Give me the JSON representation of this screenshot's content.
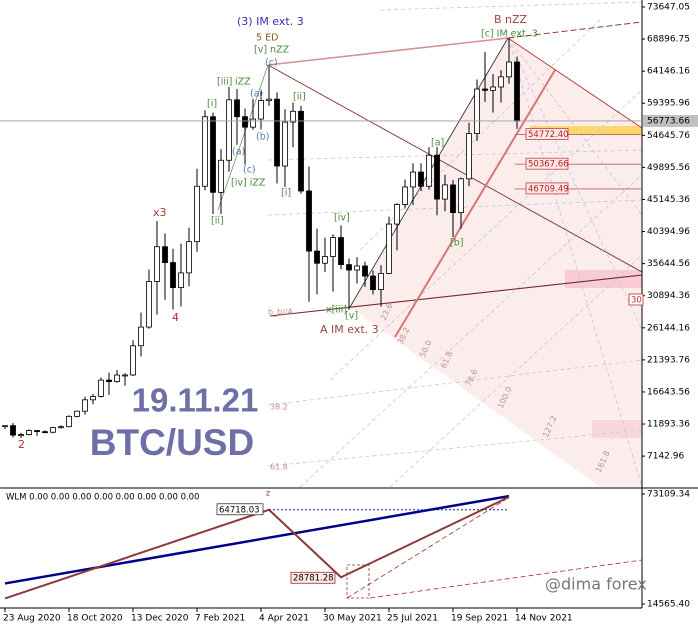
{
  "chart_data": [
    {
      "type": "candlestick",
      "title": "19.11.21",
      "subtitle": "BTC/USD",
      "categories": [
        "23 Aug 2020",
        null,
        null,
        null,
        null,
        null,
        null,
        null,
        "18 Oct 2020",
        null,
        null,
        null,
        null,
        null,
        null,
        null,
        "13 Dec 2020",
        null,
        null,
        null,
        null,
        null,
        null,
        null,
        "7 Feb 2021",
        null,
        null,
        null,
        null,
        null,
        null,
        null,
        "4 Apr 2021",
        null,
        null,
        null,
        null,
        null,
        null,
        null,
        "30 May 2021",
        null,
        null,
        null,
        null,
        null,
        null,
        null,
        "25 Jul 2021",
        null,
        null,
        null,
        null,
        null,
        null,
        null,
        "19 Sep 2021",
        null,
        null,
        null,
        null,
        null,
        null,
        null,
        "14 Nov 2021"
      ],
      "open": [
        11650,
        11650,
        10250,
        10330,
        10930,
        10770,
        10680,
        11370,
        11500,
        13030,
        13800,
        15480,
        15980,
        18400,
        18180,
        19150,
        19160,
        23480,
        26250,
        33000,
        38150,
        35800,
        32100,
        34270,
        38900,
        47100,
        57400,
        46200,
        50950,
        59900,
        57400,
        55850,
        57050,
        59800,
        60000,
        50100,
        56600,
        58200,
        46400,
        37500,
        35700,
        36700,
        39500,
        35500,
        34700,
        35300,
        33800,
        31800,
        34200,
        41500,
        44400,
        47000,
        49200,
        47100,
        51700,
        45200,
        47300,
        43200,
        48200,
        54900,
        61500,
        61300,
        61800,
        63300,
        65500
      ],
      "high": [
        11700,
        12050,
        10600,
        11100,
        10990,
        10950,
        11490,
        11720,
        13200,
        13860,
        15960,
        16340,
        18800,
        19480,
        19920,
        19420,
        24300,
        28400,
        34780,
        41950,
        40100,
        37850,
        38600,
        40950,
        49700,
        58350,
        58000,
        52600,
        61800,
        61500,
        58600,
        60000,
        61200,
        64850,
        61000,
        58500,
        59500,
        59000,
        50000,
        40800,
        39500,
        40000,
        41300,
        36400,
        36600,
        35950,
        34600,
        35400,
        42600,
        44600,
        48100,
        50500,
        50500,
        52900,
        52900,
        48800,
        48000,
        48400,
        56500,
        62900,
        67000,
        63700,
        64300,
        69000,
        66300
      ],
      "low": [
        11150,
        9900,
        9850,
        10200,
        10150,
        10520,
        10530,
        11210,
        11420,
        12900,
        13290,
        14830,
        15800,
        16200,
        18000,
        17570,
        19000,
        21900,
        26000,
        28100,
        30300,
        28850,
        29300,
        32300,
        37400,
        46500,
        43000,
        43000,
        49250,
        53250,
        50300,
        55450,
        55500,
        59000,
        47500,
        47000,
        52900,
        46000,
        30000,
        31100,
        34400,
        31500,
        34800,
        28800,
        32700,
        32200,
        31100,
        29300,
        34100,
        37600,
        43800,
        44300,
        46400,
        46600,
        42800,
        43400,
        39600,
        40800,
        47100,
        53800,
        59600,
        58000,
        59500,
        62300,
        55600
      ],
      "close": [
        11650,
        10250,
        10330,
        10930,
        10770,
        10680,
        11370,
        11500,
        13030,
        13800,
        15480,
        15980,
        18400,
        18180,
        19150,
        19160,
        23480,
        26250,
        33000,
        38150,
        35800,
        32100,
        34270,
        38900,
        47100,
        57400,
        46200,
        50950,
        59900,
        57400,
        55850,
        57050,
        59800,
        60000,
        50100,
        56600,
        58200,
        46400,
        37500,
        35700,
        36700,
        39500,
        35500,
        34700,
        35300,
        33800,
        31800,
        34200,
        41500,
        44400,
        47000,
        49200,
        47100,
        51700,
        45200,
        47300,
        43200,
        48200,
        54900,
        61500,
        61300,
        61800,
        63300,
        65500,
        56773.66
      ],
      "bull_color": "#ffffff",
      "bear_color": "#000000",
      "ylim": [
        2570,
        74680
      ],
      "yticks": [
        73647.05,
        68896.75,
        64146.16,
        59395.96,
        54645.76,
        49895.56,
        45145.36,
        40394.96,
        35644.56,
        30894.36,
        26144.16,
        21393.76,
        16643.56,
        11893.36,
        7142.96
      ],
      "levels": [
        {
          "value": 54772.4,
          "label": "54772.40"
        },
        {
          "value": 50367.66,
          "label": "50367.66"
        },
        {
          "value": 46709.49,
          "label": "46709.49"
        }
      ],
      "annotations": [
        {
          "text": "(3) IM ext. 3",
          "color": "#3333aa"
        },
        {
          "text": "5 ED",
          "color": "#8a5a2a"
        },
        {
          "text": "[v] nZZ",
          "color": "#4a8a3a"
        },
        {
          "text": "(c)",
          "color": "#5577aa"
        },
        {
          "text": "[iii]",
          "color": "#4a8a3a"
        },
        {
          "text": "iZZ",
          "color": "#4a8a3a"
        },
        {
          "text": "(a)",
          "color": "#5577aa"
        },
        {
          "text": "[ii]",
          "color": "#4a8a3a"
        },
        {
          "text": "[i]",
          "color": "#4a8a3a"
        },
        {
          "text": "(b)",
          "color": "#5577aa"
        },
        {
          "text": "(a)",
          "color": "#5577aa"
        },
        {
          "text": "(c)",
          "color": "#5577aa"
        },
        {
          "text": "[iv] iZZ",
          "color": "#4a8a3a"
        },
        {
          "text": "[i]",
          "color": "#4a8a3a"
        },
        {
          "text": "[ii]",
          "color": "#4a8a3a"
        },
        {
          "text": "x3",
          "color": "#b03030"
        },
        {
          "text": "4",
          "color": "#b03030"
        },
        {
          "text": "2",
          "color": "#b03030"
        },
        {
          "text": "[iv]",
          "color": "#4a8a3a"
        },
        {
          "text": "x[iii]",
          "color": "#4a8a3a"
        },
        {
          "text": "[v]",
          "color": "#4a8a3a"
        },
        {
          "text": "A IM ext. 3",
          "color": "#a04040"
        },
        {
          "text": "B nZZ",
          "color": "#a04040"
        },
        {
          "text": "[c] IM ext. 3",
          "color": "#4a8a3a"
        },
        {
          "text": "[a]",
          "color": "#4a8a3a"
        },
        {
          "text": "[b]",
          "color": "#4a8a3a"
        },
        {
          "text": "b_b//A",
          "color": "#c09090"
        },
        {
          "text": "23.6",
          "color": "#c09090"
        },
        {
          "text": "38.2",
          "color": "#c09090"
        },
        {
          "text": "50.0",
          "color": "#c09090"
        },
        {
          "text": "61.8",
          "color": "#c09090"
        },
        {
          "text": "78.6",
          "color": "#c09090"
        },
        {
          "text": "100.0",
          "color": "#c09090"
        },
        {
          "text": "127.2",
          "color": "#c09090"
        },
        {
          "text": "161.8",
          "color": "#c09090"
        },
        {
          "text": "38.2",
          "color": "#c09090"
        },
        {
          "text": "61.8",
          "color": "#c09090"
        },
        {
          "text": "30",
          "color": "#c03030"
        }
      ]
    },
    {
      "type": "line",
      "label": "WLM 0.00 0.00 0.00 0.00 0.00 0.00 0.00 0.00",
      "marker": "z",
      "watermark": "@dima forex",
      "ylim": [
        14565.4,
        73109.34
      ],
      "yticks": [
        {
          "value": 14565.4,
          "label": "14565.40"
        },
        73109.34
      ],
      "series": [
        {
          "color": "#00008b",
          "x": [
            "23 Aug 2020",
            "7 Nov 2021"
          ],
          "values": [
            25500,
            72000
          ]
        },
        {
          "color": "#8b3a3a",
          "x": [
            "23 Aug 2020",
            "11 Apr 2021",
            "13 Jun 2021",
            "7 Nov 2021"
          ],
          "values": [
            17500,
            64718.03,
            28781.28,
            71500
          ]
        }
      ]
    }
  ]
}
